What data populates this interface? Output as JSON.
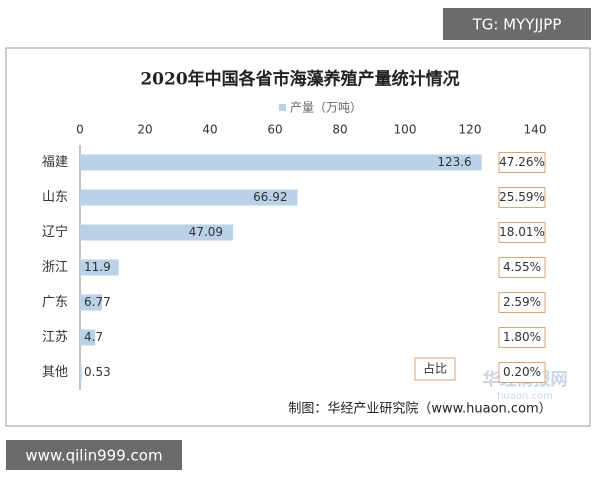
{
  "chart_data": {
    "type": "bar",
    "orientation": "horizontal",
    "title": "2020年中国各省市海藻养殖产量统计情况",
    "legend": "产量（万吨）",
    "categories": [
      "福建",
      "山东",
      "辽宁",
      "浙江",
      "广东",
      "江苏",
      "其他"
    ],
    "values": [
      123.6,
      66.92,
      47.09,
      11.9,
      6.77,
      4.7,
      0.53
    ],
    "color": "#b9d2e8",
    "xlim": [
      0,
      140
    ],
    "xticks": [
      0,
      20,
      40,
      60,
      80,
      100,
      120,
      140
    ],
    "grid": false,
    "share_title": "占比",
    "shares": [
      47.26,
      25.59,
      18.01,
      4.55,
      2.59,
      1.8,
      0.2
    ],
    "share_labels": [
      "47.26%",
      "25.59%",
      "18.01%",
      "4.55%",
      "2.59%",
      "1.80%",
      "0.20%"
    ],
    "source": "制图：华经产业研究院（www.huaon.com）"
  },
  "watermarks": {
    "top": "TG: MYYJJPP",
    "bottom": "www.qilin999.com",
    "logo": "华经情报网",
    "logo_sub": "huaon.com"
  }
}
